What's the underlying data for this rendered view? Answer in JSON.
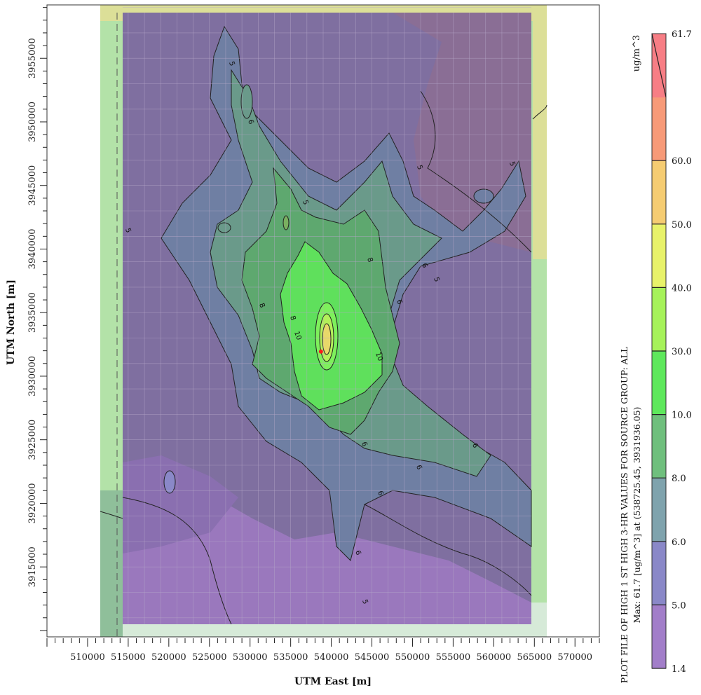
{
  "chart_data": {
    "type": "heatmap",
    "xlabel": "UTM East [m]",
    "ylabel": "UTM North [m]",
    "x_ticks": [
      510000,
      515000,
      520000,
      525000,
      530000,
      535000,
      540000,
      545000,
      550000,
      555000,
      560000,
      565000,
      570000
    ],
    "y_ticks": [
      3915000,
      3920000,
      3925000,
      3930000,
      3935000,
      3940000,
      3945000,
      3950000,
      3955000
    ],
    "xlim": [
      505000,
      573000
    ],
    "ylim": [
      3909500,
      3959200
    ],
    "colorbar": {
      "unit": "ug/m^3",
      "levels": [
        "1.4",
        "5.0",
        "6.0",
        "8.0",
        "10.0",
        "30.0",
        "40.0",
        "50.0",
        "60.0",
        "61.7"
      ],
      "colors": [
        "#a27ec9",
        "#8a88c8",
        "#7fa3ad",
        "#6fbf7d",
        "#5ee85c",
        "#a6f25a",
        "#e8f26a",
        "#f5cc72",
        "#f79a78",
        "#f77e85"
      ]
    },
    "contour_labels": [
      "5",
      "5",
      "5",
      "5",
      "5",
      "5",
      "5",
      "6",
      "6",
      "6",
      "6",
      "6",
      "6",
      "6",
      "6",
      "8",
      "8",
      "8",
      "10",
      "10"
    ],
    "plot_title": "PLOT FILE OF HIGH 1 ST HIGH 3-HR VALUES FOR SOURCE GROUP: ALL",
    "max_note": "Max: 61.7 [ug/m^3] at (538725.45, 3931936.05)",
    "max_point": {
      "x": 538725.45,
      "y": 3931936.05,
      "value": 61.7
    }
  }
}
